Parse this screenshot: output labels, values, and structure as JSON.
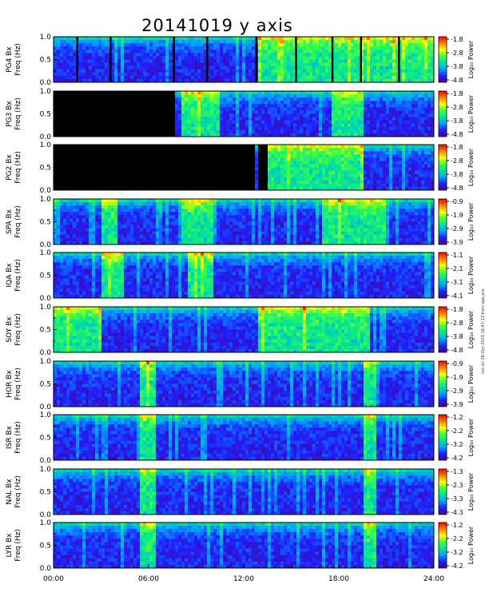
{
  "title": "20141019 y axis",
  "side_note": "run on 28-Oct-2014 16:47:13 from aps.pro",
  "colorbar_label": "Log₁₀ Power",
  "chart_data": {
    "type": "heatmap",
    "title": "20141019 y axis",
    "x_ticks": [
      "00:00",
      "06:00",
      "12:00",
      "18:00",
      "24:00"
    ],
    "x_range_hours": [
      0,
      24
    ],
    "y_ticks": [
      "0.0",
      "0.5",
      "1.0"
    ],
    "y_range_hz": [
      0,
      1.0
    ],
    "colormap": [
      "#000000",
      "#4b0082",
      "#2020ff",
      "#00a0ff",
      "#00e0a0",
      "#40ff40",
      "#ffff00",
      "#ff8000",
      "#ff0000"
    ],
    "panels": [
      {
        "station": "PG4",
        "ylabel_1": "PG4 Bx",
        "ylabel_2": "Freq (Hz)",
        "cbar_ticks": [
          "-1.8",
          "-2.8",
          "-3.8",
          "-4.8"
        ],
        "cbar_range": [
          -4.8,
          -1.8
        ],
        "no_data_hours": [],
        "bright_intervals_hours": [
          [
            13,
            24
          ]
        ],
        "data_gaps_hours": [
          1.5,
          3.6,
          7.6,
          9.7,
          12.8,
          15.3,
          17.6,
          19.4,
          21.8
        ]
      },
      {
        "station": "PG3",
        "ylabel_1": "PG3 Bx",
        "ylabel_2": "Freq (Hz)",
        "cbar_ticks": [
          "-1.8",
          "-2.8",
          "-3.8",
          "-4.8"
        ],
        "cbar_range": [
          -4.8,
          -1.8
        ],
        "no_data_hours": [
          [
            0,
            7.6
          ]
        ],
        "bright_intervals_hours": [
          [
            8,
            10.5
          ],
          [
            17.5,
            19.5
          ]
        ],
        "data_gaps_hours": []
      },
      {
        "station": "PG2",
        "ylabel_1": "PG2 Bx",
        "ylabel_2": "Freq (Hz)",
        "cbar_ticks": [
          "-1.8",
          "-2.8",
          "-3.8",
          "-4.8"
        ],
        "cbar_range": [
          -4.8,
          -1.8
        ],
        "no_data_hours": [
          [
            0,
            12.7
          ],
          [
            12.9,
            13.3
          ],
          [
            13.4,
            13.6
          ]
        ],
        "bright_intervals_hours": [
          [
            13.6,
            19.5
          ]
        ],
        "data_gaps_hours": []
      },
      {
        "station": "SPA",
        "ylabel_1": "SPA Bx",
        "ylabel_2": "Freq (Hz)",
        "cbar_ticks": [
          "-0.9",
          "-1.9",
          "-2.9",
          "-3.9"
        ],
        "cbar_range": [
          -3.9,
          -0.9
        ],
        "no_data_hours": [],
        "bright_intervals_hours": [
          [
            3,
            4
          ],
          [
            8,
            10
          ],
          [
            17,
            21
          ]
        ],
        "data_gaps_hours": []
      },
      {
        "station": "IQA",
        "ylabel_1": "IQA Bx",
        "ylabel_2": "Freq (Hz)",
        "cbar_ticks": [
          "-1.1",
          "-2.1",
          "-3.1",
          "-4.1"
        ],
        "cbar_range": [
          -4.1,
          -1.1
        ],
        "no_data_hours": [],
        "bright_intervals_hours": [
          [
            3,
            4.5
          ],
          [
            8.5,
            10
          ]
        ],
        "data_gaps_hours": []
      },
      {
        "station": "SOY",
        "ylabel_1": "SOY Bx",
        "ylabel_2": "Freq (Hz)",
        "cbar_ticks": [
          "-1.8",
          "-2.8",
          "-3.8",
          "-4.8"
        ],
        "cbar_range": [
          -4.8,
          -1.8
        ],
        "no_data_hours": [],
        "bright_intervals_hours": [
          [
            0,
            3
          ],
          [
            13,
            20
          ]
        ],
        "data_gaps_hours": []
      },
      {
        "station": "HOR",
        "ylabel_1": "HOR Bx",
        "ylabel_2": "Freq (Hz)",
        "cbar_ticks": [
          "-0.9",
          "-1.9",
          "-2.9",
          "-3.9"
        ],
        "cbar_range": [
          -3.9,
          -0.9
        ],
        "no_data_hours": [],
        "bright_intervals_hours": [
          [
            5.5,
            6.5
          ],
          [
            19.5,
            20.3
          ]
        ],
        "data_gaps_hours": []
      },
      {
        "station": "ISR",
        "ylabel_1": "ISR Bx",
        "ylabel_2": "Freq (Hz)",
        "cbar_ticks": [
          "-1.2",
          "-2.2",
          "-3.2",
          "-4.2"
        ],
        "cbar_range": [
          -4.2,
          -1.2
        ],
        "no_data_hours": [],
        "bright_intervals_hours": [
          [
            5.5,
            6.5
          ],
          [
            19.5,
            20.3
          ]
        ],
        "data_gaps_hours": []
      },
      {
        "station": "NAL",
        "ylabel_1": "NAL Bx",
        "ylabel_2": "Freq (Hz)",
        "cbar_ticks": [
          "-1.3",
          "-2.3",
          "-3.3",
          "-4.3"
        ],
        "cbar_range": [
          -4.3,
          -1.3
        ],
        "no_data_hours": [],
        "bright_intervals_hours": [
          [
            5.5,
            6.5
          ],
          [
            19.5,
            20.3
          ]
        ],
        "data_gaps_hours": []
      },
      {
        "station": "LYR",
        "ylabel_1": "LYR Bx",
        "ylabel_2": "Freq (Hz)",
        "cbar_ticks": [
          "-1.2",
          "-2.2",
          "-3.2",
          "-4.2"
        ],
        "cbar_range": [
          -4.2,
          -1.2
        ],
        "no_data_hours": [],
        "bright_intervals_hours": [
          [
            5.5,
            6.5
          ],
          [
            19.5,
            20.3
          ]
        ],
        "data_gaps_hours": []
      }
    ]
  }
}
